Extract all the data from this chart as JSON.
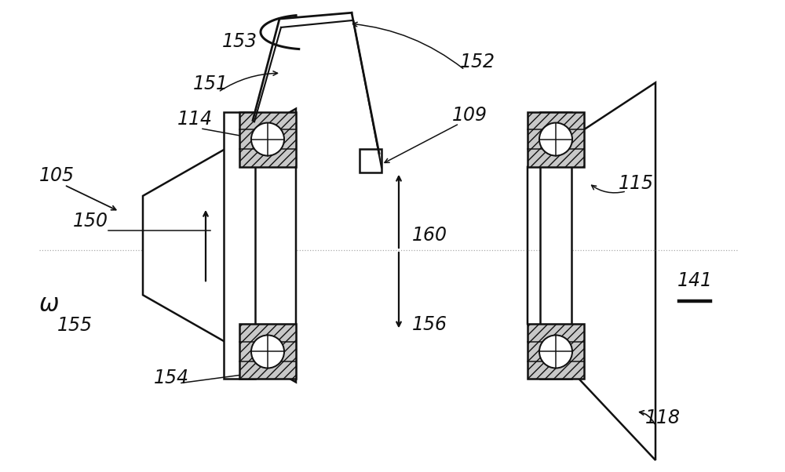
{
  "bg": "#ffffff",
  "lc": "#111111",
  "hatch_fc": "#c8c8c8",
  "figsize": [
    10.0,
    6.02
  ],
  "dpi": 100,
  "label_fs": 17
}
